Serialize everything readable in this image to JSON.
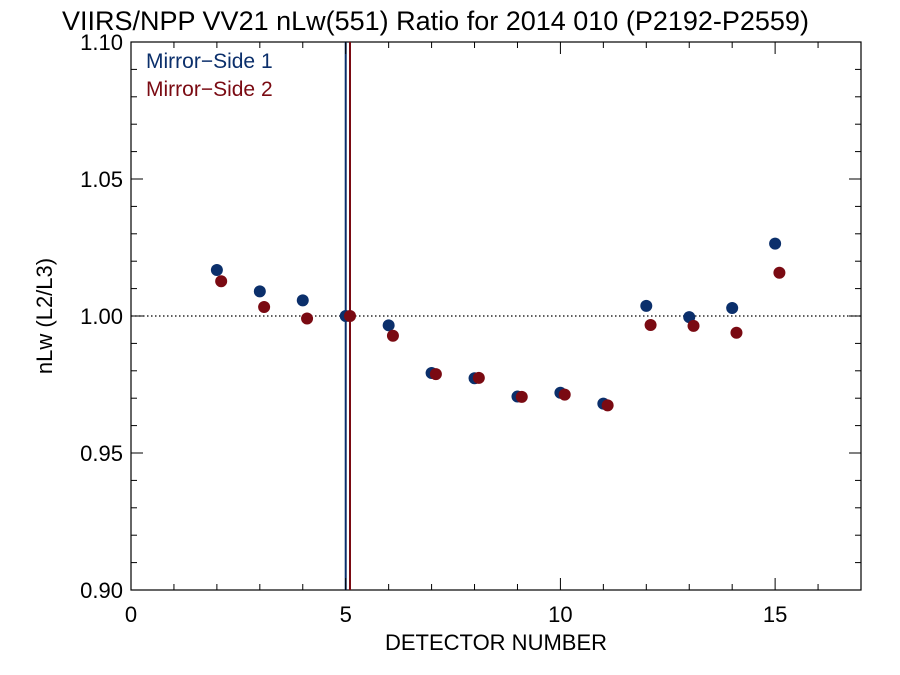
{
  "chart_data": {
    "type": "scatter",
    "title": "VIIRS/NPP VV21 nLw(551) Ratio for 2014 010 (P2192-P2559)",
    "xlabel": "DETECTOR NUMBER",
    "ylabel": "nLw (L2/L3)",
    "xlim": [
      0,
      17
    ],
    "ylim": [
      0.9,
      1.1
    ],
    "x_ticks": [
      0,
      5,
      10,
      15
    ],
    "x_tick_labels": [
      "0",
      "5",
      "10",
      "15"
    ],
    "y_ticks": [
      0.9,
      0.95,
      1.0,
      1.05,
      1.1
    ],
    "y_tick_labels": [
      "0.90",
      "0.95",
      "1.00",
      "1.05",
      "1.10"
    ],
    "reference_line": {
      "y": 1.0,
      "style": "dotted"
    },
    "vertical_markers": [
      {
        "x": 5,
        "series": "Mirror-Side 1"
      },
      {
        "x": 5.1,
        "series": "Mirror-Side 2"
      }
    ],
    "legend_position": "top-left",
    "grid": false,
    "series": [
      {
        "name": "Mirror−Side 1",
        "color": "#0b2f6b",
        "points": [
          [
            2,
            1.0168
          ],
          [
            3,
            1.009
          ],
          [
            4,
            1.0057
          ],
          [
            5,
            1.0
          ],
          [
            6,
            0.9966
          ],
          [
            7,
            0.9792
          ],
          [
            8,
            0.9773
          ],
          [
            9,
            0.9706
          ],
          [
            10,
            0.972
          ],
          [
            11,
            0.968
          ],
          [
            12,
            1.0037
          ],
          [
            13,
            0.9996
          ],
          [
            14,
            1.0029
          ],
          [
            15,
            1.0264
          ]
        ]
      },
      {
        "name": "Mirror−Side 2",
        "color": "#7a0a12",
        "points": [
          [
            2.1,
            1.0127
          ],
          [
            3.1,
            1.0033
          ],
          [
            4.1,
            0.9991
          ],
          [
            5.1,
            1.0
          ],
          [
            6.1,
            0.9928
          ],
          [
            7.1,
            0.9788
          ],
          [
            8.1,
            0.9774
          ],
          [
            9.1,
            0.9705
          ],
          [
            10.1,
            0.9713
          ],
          [
            11.1,
            0.9674
          ],
          [
            12.1,
            0.9967
          ],
          [
            13.1,
            0.9964
          ],
          [
            14.1,
            0.9939
          ],
          [
            15.1,
            1.0158
          ]
        ]
      }
    ]
  }
}
